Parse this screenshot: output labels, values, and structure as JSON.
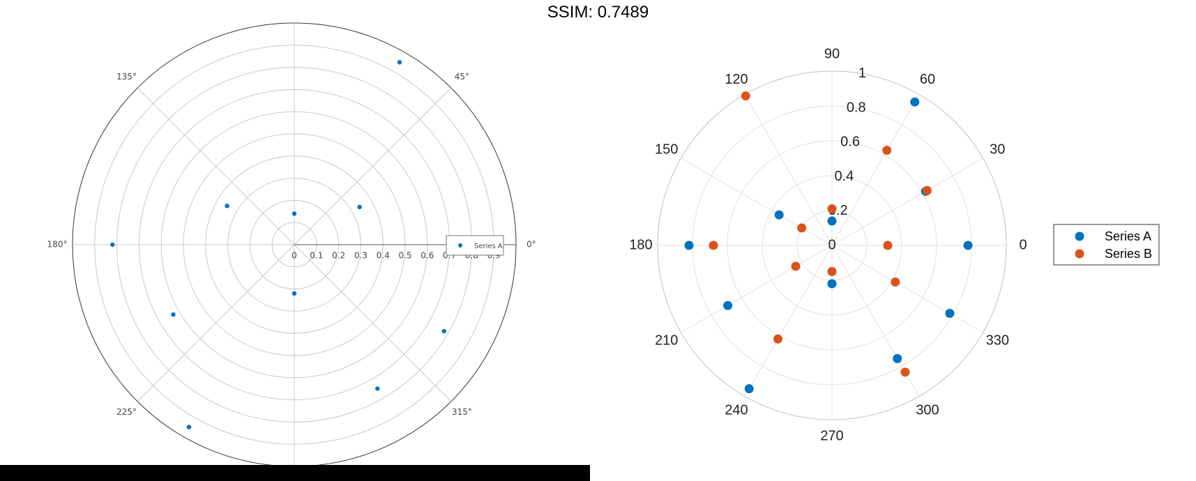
{
  "title": "SSIM: 0.7489",
  "colors": {
    "series_a": "#0072BD",
    "series_b": "#D95319",
    "bottom_bar": "#000000"
  },
  "left_chart": {
    "angle_labels": [
      "0°",
      "45°",
      "135°",
      "180°",
      "225°",
      "315°"
    ],
    "radial_labels": [
      "0",
      "0.1",
      "0.2",
      "0.3",
      "0.4",
      "0.5",
      "0.6",
      "0.7",
      "0.8",
      "0.9"
    ],
    "legend": [
      "Series A"
    ]
  },
  "right_chart": {
    "angle_labels": [
      "0",
      "30",
      "60",
      "90",
      "120",
      "150",
      "180",
      "210",
      "240",
      "270",
      "300",
      "330"
    ],
    "radial_labels": [
      "0",
      "0.2",
      "0.4",
      "0.6",
      "0.8",
      "1"
    ],
    "legend": [
      "Series A",
      "Series B"
    ]
  },
  "chart_data": [
    {
      "type": "scatter",
      "coordinate_system": "polar",
      "angle_unit": "degrees",
      "rlim": [
        0,
        1
      ],
      "grid": true,
      "legend_position": "right",
      "series": [
        {
          "name": "Series A",
          "color": "#0072BD",
          "theta": [
            0,
            30,
            60,
            90,
            150,
            180,
            210,
            240,
            270,
            300,
            330
          ],
          "r": [
            0.7,
            0.34,
            0.95,
            0.14,
            0.35,
            0.82,
            0.63,
            0.95,
            0.22,
            0.75,
            0.78
          ]
        }
      ]
    },
    {
      "type": "scatter",
      "coordinate_system": "polar",
      "angle_unit": "degrees",
      "rlim": [
        0,
        1
      ],
      "grid": true,
      "legend_position": "right",
      "series": [
        {
          "name": "Series A",
          "color": "#0072BD",
          "theta": [
            0,
            30,
            60,
            90,
            150,
            180,
            210,
            240,
            270,
            300,
            330
          ],
          "r": [
            0.78,
            0.62,
            0.95,
            0.14,
            0.35,
            0.82,
            0.69,
            0.95,
            0.22,
            0.75,
            0.78
          ]
        },
        {
          "name": "Series B",
          "color": "#D95319",
          "theta": [
            0,
            30,
            60,
            90,
            120,
            150,
            180,
            210,
            240,
            270,
            300,
            330
          ],
          "r": [
            0.32,
            0.63,
            0.63,
            0.21,
            0.99,
            0.2,
            0.68,
            0.24,
            0.62,
            0.15,
            0.84,
            0.42
          ]
        }
      ]
    }
  ]
}
